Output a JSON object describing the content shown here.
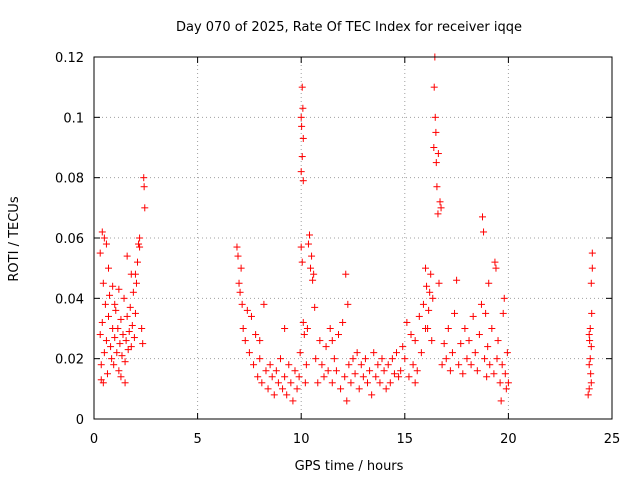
{
  "chart_data": {
    "type": "scatter",
    "title": "Day 070 of 2025, Rate Of TEC Index for receiver iqqe",
    "xlabel": "GPS time / hours",
    "ylabel": "ROTI / TECUs",
    "xlim": [
      0,
      25
    ],
    "ylim": [
      0,
      0.12
    ],
    "xticks": [
      0,
      5,
      10,
      15,
      20,
      25
    ],
    "yticks": [
      0,
      0.02,
      0.04,
      0.06,
      0.08,
      0.1,
      0.12
    ],
    "xtick_labels": [
      "0",
      "5",
      "10",
      "15",
      "20",
      "25"
    ],
    "ytick_labels": [
      "0",
      "0.02",
      "0.04",
      "0.06",
      "0.08",
      "0.1",
      "0.12"
    ],
    "grid": true,
    "marker": "plus",
    "color": "#ff0000",
    "points": [
      [
        0.3,
        0.028
      ],
      [
        0.35,
        0.018
      ],
      [
        0.4,
        0.032
      ],
      [
        0.45,
        0.045
      ],
      [
        0.5,
        0.022
      ],
      [
        0.55,
        0.038
      ],
      [
        0.6,
        0.026
      ],
      [
        0.65,
        0.015
      ],
      [
        0.7,
        0.034
      ],
      [
        0.75,
        0.041
      ],
      [
        0.8,
        0.024
      ],
      [
        0.85,
        0.02
      ],
      [
        0.9,
        0.03
      ],
      [
        0.95,
        0.018
      ],
      [
        1.0,
        0.027
      ],
      [
        1.05,
        0.036
      ],
      [
        1.1,
        0.022
      ],
      [
        1.15,
        0.03
      ],
      [
        1.2,
        0.016
      ],
      [
        1.25,
        0.025
      ],
      [
        1.3,
        0.033
      ],
      [
        1.35,
        0.021
      ],
      [
        1.4,
        0.028
      ],
      [
        1.45,
        0.04
      ],
      [
        1.5,
        0.019
      ],
      [
        1.55,
        0.026
      ],
      [
        1.6,
        0.034
      ],
      [
        1.65,
        0.023
      ],
      [
        1.7,
        0.029
      ],
      [
        1.75,
        0.037
      ],
      [
        1.8,
        0.024
      ],
      [
        1.85,
        0.031
      ],
      [
        1.9,
        0.042
      ],
      [
        1.95,
        0.027
      ],
      [
        2.0,
        0.035
      ],
      [
        2.05,
        0.045
      ],
      [
        2.1,
        0.052
      ],
      [
        2.15,
        0.058
      ],
      [
        2.2,
        0.06
      ],
      [
        2.3,
        0.03
      ],
      [
        2.35,
        0.025
      ],
      [
        2.4,
        0.08
      ],
      [
        2.42,
        0.077
      ],
      [
        2.45,
        0.07
      ],
      [
        0.3,
        0.055
      ],
      [
        0.4,
        0.062
      ],
      [
        0.5,
        0.06
      ],
      [
        0.35,
        0.013
      ],
      [
        0.45,
        0.012
      ],
      [
        1.3,
        0.014
      ],
      [
        1.5,
        0.012
      ],
      [
        0.6,
        0.058
      ],
      [
        1.6,
        0.054
      ],
      [
        1.8,
        0.048
      ],
      [
        1.2,
        0.043
      ],
      [
        0.7,
        0.05
      ],
      [
        2.0,
        0.048
      ],
      [
        2.2,
        0.057
      ],
      [
        0.9,
        0.044
      ],
      [
        1.0,
        0.038
      ],
      [
        6.9,
        0.057
      ],
      [
        6.95,
        0.054
      ],
      [
        7.0,
        0.045
      ],
      [
        7.05,
        0.042
      ],
      [
        7.1,
        0.05
      ],
      [
        7.15,
        0.038
      ],
      [
        7.2,
        0.03
      ],
      [
        7.3,
        0.026
      ],
      [
        7.4,
        0.036
      ],
      [
        7.5,
        0.022
      ],
      [
        7.6,
        0.034
      ],
      [
        7.7,
        0.018
      ],
      [
        7.8,
        0.028
      ],
      [
        7.9,
        0.014
      ],
      [
        8.0,
        0.02
      ],
      [
        8.1,
        0.012
      ],
      [
        8.2,
        0.038
      ],
      [
        8.3,
        0.016
      ],
      [
        8.4,
        0.01
      ],
      [
        8.5,
        0.018
      ],
      [
        8.6,
        0.014
      ],
      [
        8.7,
        0.008
      ],
      [
        8.8,
        0.016
      ],
      [
        8.9,
        0.012
      ],
      [
        9.0,
        0.02
      ],
      [
        9.1,
        0.01
      ],
      [
        9.2,
        0.014
      ],
      [
        9.3,
        0.008
      ],
      [
        9.4,
        0.018
      ],
      [
        9.5,
        0.012
      ],
      [
        9.6,
        0.006
      ],
      [
        9.7,
        0.016
      ],
      [
        9.8,
        0.01
      ],
      [
        9.9,
        0.014
      ],
      [
        9.95,
        0.022
      ],
      [
        10.0,
        0.1
      ],
      [
        10.02,
        0.097
      ],
      [
        10.05,
        0.11
      ],
      [
        10.08,
        0.103
      ],
      [
        10.1,
        0.093
      ],
      [
        10.0,
        0.082
      ],
      [
        10.05,
        0.087
      ],
      [
        10.1,
        0.079
      ],
      [
        10.0,
        0.057
      ],
      [
        10.05,
        0.052
      ],
      [
        10.1,
        0.032
      ],
      [
        10.15,
        0.028
      ],
      [
        10.2,
        0.012
      ],
      [
        10.25,
        0.018
      ],
      [
        10.3,
        0.03
      ],
      [
        10.35,
        0.058
      ],
      [
        10.4,
        0.061
      ],
      [
        10.45,
        0.05
      ],
      [
        10.5,
        0.054
      ],
      [
        10.55,
        0.046
      ],
      [
        10.6,
        0.048
      ],
      [
        10.65,
        0.037
      ],
      [
        10.7,
        0.02
      ],
      [
        10.8,
        0.012
      ],
      [
        10.9,
        0.026
      ],
      [
        11.0,
        0.018
      ],
      [
        11.1,
        0.014
      ],
      [
        11.2,
        0.024
      ],
      [
        11.3,
        0.016
      ],
      [
        11.4,
        0.03
      ],
      [
        11.5,
        0.012
      ],
      [
        11.6,
        0.02
      ],
      [
        11.7,
        0.016
      ],
      [
        11.8,
        0.028
      ],
      [
        11.9,
        0.01
      ],
      [
        12.0,
        0.032
      ],
      [
        12.1,
        0.014
      ],
      [
        12.15,
        0.048
      ],
      [
        12.2,
        0.006
      ],
      [
        12.25,
        0.038
      ],
      [
        12.3,
        0.018
      ],
      [
        12.4,
        0.012
      ],
      [
        12.5,
        0.02
      ],
      [
        12.6,
        0.015
      ],
      [
        12.7,
        0.022
      ],
      [
        12.8,
        0.01
      ],
      [
        12.9,
        0.018
      ],
      [
        13.0,
        0.014
      ],
      [
        13.1,
        0.02
      ],
      [
        13.2,
        0.012
      ],
      [
        13.3,
        0.016
      ],
      [
        13.4,
        0.008
      ],
      [
        13.5,
        0.022
      ],
      [
        13.6,
        0.014
      ],
      [
        13.7,
        0.018
      ],
      [
        13.8,
        0.012
      ],
      [
        13.9,
        0.02
      ],
      [
        14.0,
        0.016
      ],
      [
        14.1,
        0.01
      ],
      [
        14.2,
        0.018
      ],
      [
        14.3,
        0.012
      ],
      [
        14.4,
        0.02
      ],
      [
        14.5,
        0.015
      ],
      [
        14.6,
        0.022
      ],
      [
        14.7,
        0.014
      ],
      [
        14.8,
        0.016
      ],
      [
        14.9,
        0.024
      ],
      [
        15.0,
        0.02
      ],
      [
        15.1,
        0.032
      ],
      [
        15.2,
        0.014
      ],
      [
        15.3,
        0.028
      ],
      [
        15.4,
        0.018
      ],
      [
        15.5,
        0.026
      ],
      [
        15.6,
        0.016
      ],
      [
        15.7,
        0.034
      ],
      [
        15.8,
        0.022
      ],
      [
        15.9,
        0.038
      ],
      [
        16.0,
        0.05
      ],
      [
        16.05,
        0.044
      ],
      [
        16.1,
        0.03
      ],
      [
        16.15,
        0.036
      ],
      [
        16.2,
        0.042
      ],
      [
        16.25,
        0.048
      ],
      [
        16.3,
        0.026
      ],
      [
        16.35,
        0.04
      ],
      [
        16.4,
        0.09
      ],
      [
        16.42,
        0.11
      ],
      [
        16.45,
        0.12
      ],
      [
        16.47,
        0.1
      ],
      [
        16.5,
        0.095
      ],
      [
        16.52,
        0.085
      ],
      [
        16.55,
        0.077
      ],
      [
        16.6,
        0.068
      ],
      [
        16.62,
        0.088
      ],
      [
        16.65,
        0.045
      ],
      [
        16.7,
        0.072
      ],
      [
        16.75,
        0.07
      ],
      [
        16.8,
        0.018
      ],
      [
        16.9,
        0.025
      ],
      [
        17.0,
        0.02
      ],
      [
        17.1,
        0.03
      ],
      [
        17.2,
        0.016
      ],
      [
        17.3,
        0.022
      ],
      [
        17.4,
        0.035
      ],
      [
        17.5,
        0.046
      ],
      [
        17.6,
        0.018
      ],
      [
        17.7,
        0.025
      ],
      [
        17.8,
        0.015
      ],
      [
        17.9,
        0.03
      ],
      [
        18.0,
        0.02
      ],
      [
        18.1,
        0.026
      ],
      [
        18.2,
        0.018
      ],
      [
        18.3,
        0.034
      ],
      [
        18.4,
        0.022
      ],
      [
        18.5,
        0.016
      ],
      [
        18.6,
        0.028
      ],
      [
        18.7,
        0.038
      ],
      [
        18.75,
        0.067
      ],
      [
        18.8,
        0.062
      ],
      [
        18.85,
        0.02
      ],
      [
        18.9,
        0.035
      ],
      [
        18.95,
        0.014
      ],
      [
        19.0,
        0.024
      ],
      [
        19.05,
        0.045
      ],
      [
        19.1,
        0.018
      ],
      [
        19.2,
        0.03
      ],
      [
        19.3,
        0.015
      ],
      [
        19.35,
        0.052
      ],
      [
        19.4,
        0.05
      ],
      [
        19.45,
        0.02
      ],
      [
        19.5,
        0.026
      ],
      [
        19.6,
        0.012
      ],
      [
        19.65,
        0.006
      ],
      [
        19.7,
        0.018
      ],
      [
        19.75,
        0.035
      ],
      [
        19.8,
        0.04
      ],
      [
        19.85,
        0.015
      ],
      [
        19.9,
        0.01
      ],
      [
        19.95,
        0.022
      ],
      [
        20.0,
        0.012
      ],
      [
        16.0,
        0.03
      ],
      [
        15.5,
        0.012
      ],
      [
        11.5,
        0.026
      ],
      [
        9.2,
        0.03
      ],
      [
        8.0,
        0.026
      ],
      [
        23.85,
        0.008
      ],
      [
        23.9,
        0.028
      ],
      [
        23.92,
        0.026
      ],
      [
        23.95,
        0.02
      ],
      [
        23.97,
        0.015
      ],
      [
        24.0,
        0.045
      ],
      [
        24.02,
        0.035
      ],
      [
        24.05,
        0.05
      ],
      [
        24.05,
        0.055
      ],
      [
        23.9,
        0.018
      ],
      [
        24.0,
        0.012
      ],
      [
        23.95,
        0.03
      ],
      [
        24.0,
        0.024
      ],
      [
        23.9,
        0.01
      ]
    ]
  }
}
